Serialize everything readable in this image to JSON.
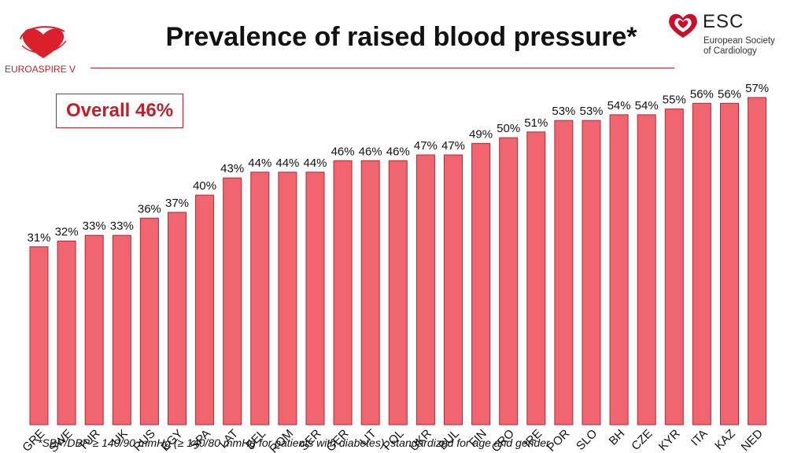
{
  "header": {
    "title": "Prevalence of raised blood pressure*",
    "left_logo_text": "EUROASPIRE V",
    "right_logo_title": "ESC",
    "right_logo_line1": "European Society",
    "right_logo_line2": "of Cardiology"
  },
  "overall_label": "Overall 46%",
  "footnote": "*SBP/DBP ≥ 140/90 mmHg (≥ 140/80 mmHg for patients with diabetes); standardized for age and gender",
  "colors": {
    "bar": "#f0656f",
    "bar_edge": "#b02a34",
    "accent": "#c0202a"
  },
  "chart_data": {
    "type": "bar",
    "categories": [
      "GRE",
      "SWE",
      "TUR",
      "UK",
      "RUS",
      "EGY",
      "SPA",
      "LAT",
      "BEL",
      "ROM",
      "SER",
      "GER",
      "LIT",
      "POL",
      "UKR",
      "BUL",
      "FIN",
      "CRO",
      "IRE",
      "POR",
      "SLO",
      "BH",
      "CZE",
      "KYR",
      "ITA",
      "KAZ",
      "NED"
    ],
    "values": [
      31,
      32,
      33,
      33,
      36,
      37,
      40,
      43,
      44,
      44,
      44,
      46,
      46,
      46,
      47,
      47,
      49,
      50,
      51,
      53,
      53,
      54,
      54,
      55,
      56,
      56,
      57
    ],
    "value_labels": [
      "31%",
      "32%",
      "33%",
      "33%",
      "36%",
      "37%",
      "40%",
      "43%",
      "44%",
      "44%",
      "44%",
      "46%",
      "46%",
      "46%",
      "47%",
      "47%",
      "49%",
      "50%",
      "51%",
      "53%",
      "53%",
      "54%",
      "54%",
      "55%",
      "56%",
      "56%",
      "57%"
    ],
    "ylim": [
      0,
      57
    ],
    "grid": false,
    "legend": "none"
  }
}
